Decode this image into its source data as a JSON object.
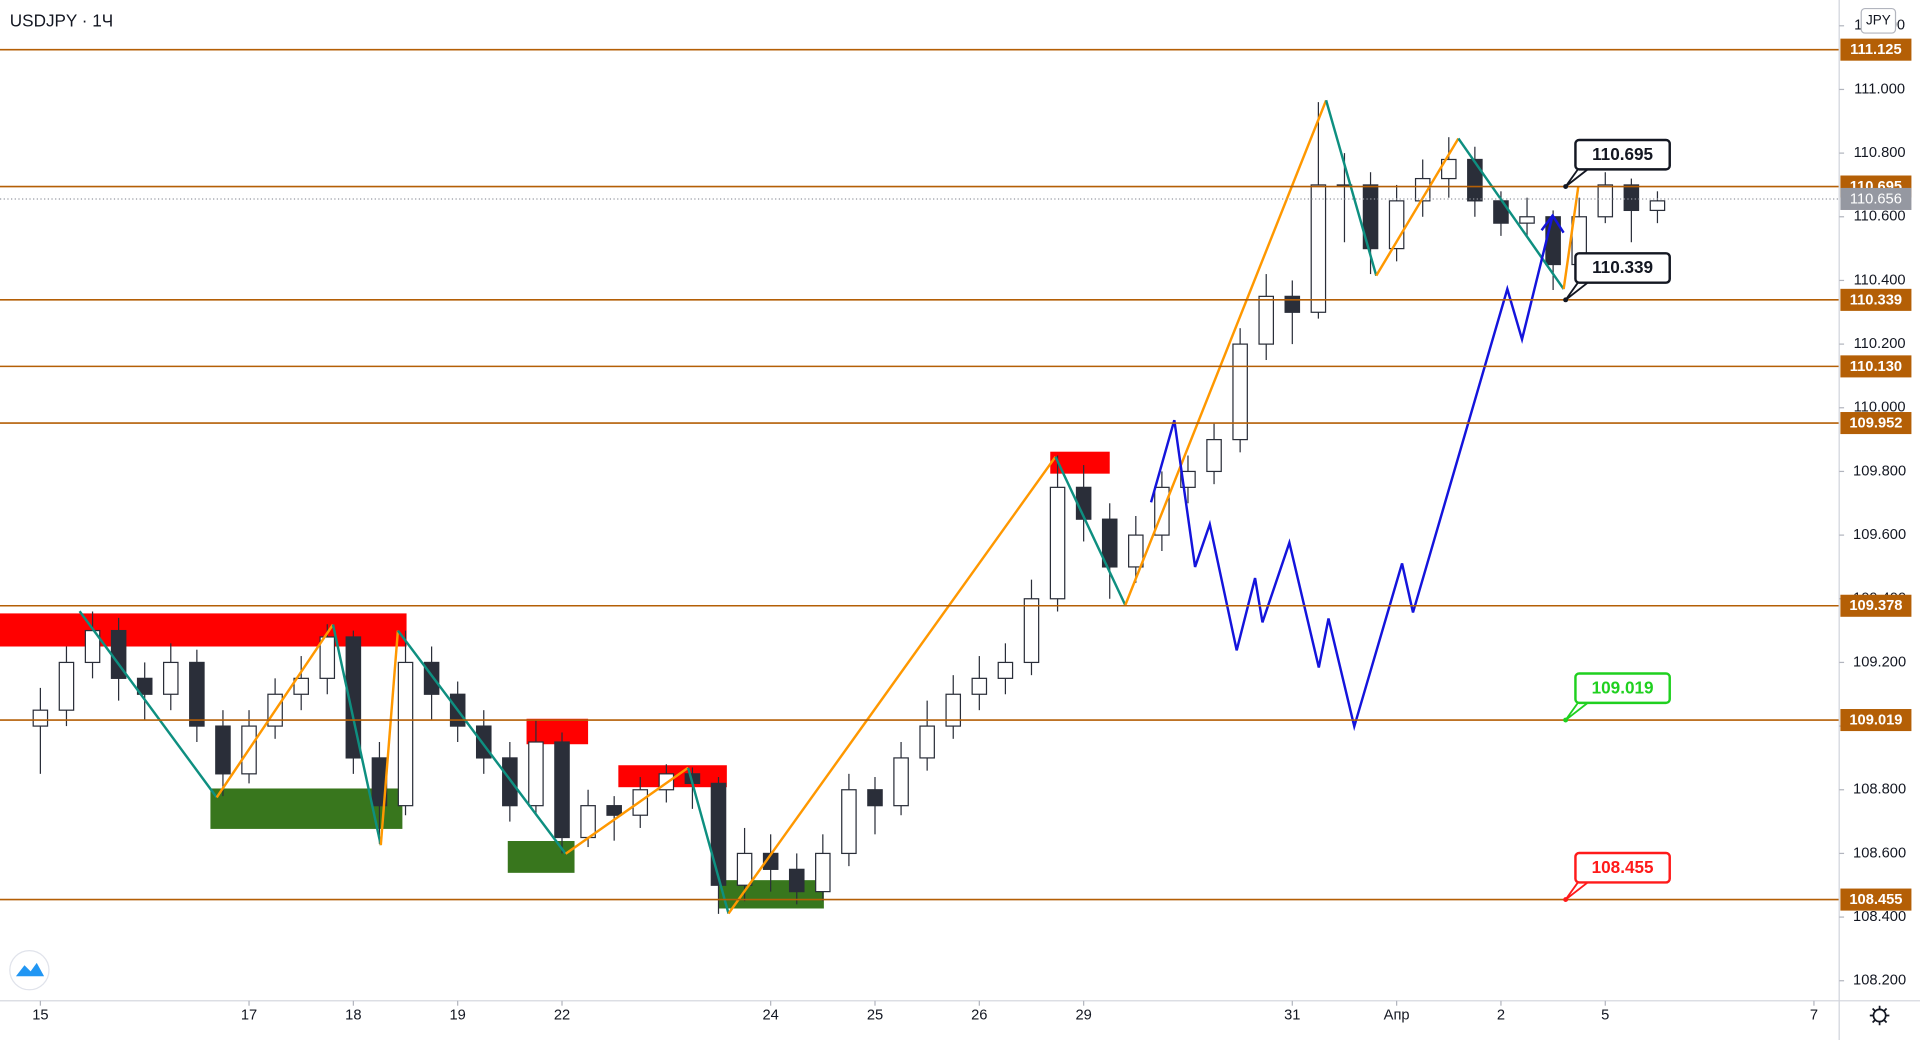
{
  "chart_data": {
    "type": "candlestick",
    "title": "USDJPY · 1Ч",
    "currency": "JPY",
    "xlim": [
      -0.387,
      17.242
    ],
    "xticks": [
      {
        "value": 0,
        "label": "15"
      },
      {
        "value": 2,
        "label": "17"
      },
      {
        "value": 3,
        "label": "18"
      },
      {
        "value": 4,
        "label": "19"
      },
      {
        "value": 5,
        "label": "22"
      },
      {
        "value": 7,
        "label": "24"
      },
      {
        "value": 8,
        "label": "25"
      },
      {
        "value": 9,
        "label": "26"
      },
      {
        "value": 10,
        "label": "29"
      },
      {
        "value": 12,
        "label": "31"
      },
      {
        "value": 13,
        "label": "Апр"
      },
      {
        "value": 14,
        "label": "2"
      },
      {
        "value": 15,
        "label": "5"
      },
      {
        "value": 17,
        "label": "7"
      }
    ],
    "ylim": [
      108.137,
      111.281
    ],
    "yticks": [
      {
        "value": 108.2,
        "label": "108.200"
      },
      {
        "value": 108.4,
        "label": "108.400"
      },
      {
        "value": 108.6,
        "label": "108.600"
      },
      {
        "value": 108.8,
        "label": "108.800"
      },
      {
        "value": 109.0,
        "label": "109.000"
      },
      {
        "value": 109.2,
        "label": "109.200"
      },
      {
        "value": 109.4,
        "label": "109.400"
      },
      {
        "value": 109.6,
        "label": "109.600"
      },
      {
        "value": 109.8,
        "label": "109.800"
      },
      {
        "value": 110.0,
        "label": "110.000"
      },
      {
        "value": 110.2,
        "label": "110.200"
      },
      {
        "value": 110.4,
        "label": "110.400"
      },
      {
        "value": 110.6,
        "label": "110.600"
      },
      {
        "value": 110.8,
        "label": "110.800"
      },
      {
        "value": 111.0,
        "label": "111.000"
      },
      {
        "value": 111.2,
        "label": "111.200"
      }
    ],
    "candles": {
      "up_color": "#ffffff",
      "down_color": "#2a2e39",
      "wick_color": "#2a2e39",
      "x": [
        0,
        0.25,
        0.5,
        0.75,
        1,
        1.25,
        1.5,
        1.75,
        2,
        2.25,
        2.5,
        2.75,
        3,
        3.25,
        3.5,
        3.75,
        4,
        4.25,
        4.5,
        4.75,
        5,
        5.25,
        5.5,
        5.75,
        6,
        6.25,
        6.5,
        6.75,
        7,
        7.25,
        7.5,
        7.75,
        8,
        8.25,
        8.5,
        8.75,
        9,
        9.25,
        9.5,
        9.75,
        10,
        10.25,
        10.5,
        10.75,
        11,
        11.25,
        11.5,
        11.75,
        12,
        12.25,
        12.5,
        12.75,
        13,
        13.25,
        13.5,
        13.75,
        14,
        14.25,
        14.5,
        14.75,
        15,
        15.25,
        15.5
      ],
      "open": [
        109.0,
        109.05,
        109.2,
        109.3,
        109.15,
        109.1,
        109.2,
        109.0,
        108.85,
        109.0,
        109.1,
        109.15,
        109.28,
        108.9,
        108.75,
        109.2,
        109.1,
        109.0,
        108.9,
        108.75,
        108.95,
        108.65,
        108.75,
        108.72,
        108.8,
        108.85,
        108.82,
        108.5,
        108.6,
        108.55,
        108.48,
        108.6,
        108.8,
        108.75,
        108.9,
        109.0,
        109.1,
        109.15,
        109.2,
        109.4,
        109.75,
        109.65,
        109.5,
        109.6,
        109.75,
        109.8,
        109.9,
        110.2,
        110.35,
        110.3,
        110.7,
        110.7,
        110.5,
        110.65,
        110.72,
        110.78,
        110.65,
        110.58,
        110.6,
        110.45,
        110.6,
        110.7,
        110.62
      ],
      "high": [
        109.12,
        109.25,
        109.36,
        109.34,
        109.2,
        109.26,
        109.24,
        109.05,
        109.05,
        109.15,
        109.22,
        109.32,
        109.3,
        108.95,
        109.3,
        109.25,
        109.14,
        109.05,
        108.95,
        109.02,
        108.98,
        108.8,
        108.78,
        108.84,
        108.88,
        108.87,
        108.84,
        108.68,
        108.66,
        108.6,
        108.66,
        108.85,
        108.84,
        108.95,
        109.08,
        109.16,
        109.22,
        109.26,
        109.46,
        109.85,
        109.82,
        109.7,
        109.66,
        109.8,
        109.85,
        109.95,
        110.25,
        110.42,
        110.4,
        110.96,
        110.8,
        110.74,
        110.7,
        110.78,
        110.85,
        110.82,
        110.68,
        110.66,
        110.62,
        110.66,
        110.74,
        110.72,
        110.68
      ],
      "low": [
        108.85,
        109.0,
        109.15,
        109.08,
        109.02,
        109.05,
        108.95,
        108.78,
        108.82,
        108.96,
        109.05,
        109.1,
        108.85,
        108.63,
        108.72,
        109.02,
        108.95,
        108.85,
        108.7,
        108.72,
        108.6,
        108.62,
        108.64,
        108.68,
        108.76,
        108.74,
        108.41,
        108.45,
        108.48,
        108.44,
        108.45,
        108.56,
        108.66,
        108.72,
        108.86,
        108.96,
        109.05,
        109.1,
        109.16,
        109.36,
        109.58,
        109.4,
        109.45,
        109.55,
        109.7,
        109.76,
        109.86,
        110.15,
        110.2,
        110.28,
        110.52,
        110.42,
        110.46,
        110.6,
        110.66,
        110.6,
        110.54,
        110.54,
        110.37,
        110.4,
        110.58,
        110.52,
        110.58
      ],
      "close": [
        109.05,
        109.2,
        109.3,
        109.15,
        109.1,
        109.2,
        109.0,
        108.85,
        109.0,
        109.1,
        109.15,
        109.28,
        108.9,
        108.75,
        109.2,
        109.1,
        109.0,
        108.9,
        108.75,
        108.95,
        108.65,
        108.75,
        108.72,
        108.8,
        108.85,
        108.82,
        108.5,
        108.6,
        108.55,
        108.48,
        108.6,
        108.8,
        108.75,
        108.9,
        109.0,
        109.1,
        109.15,
        109.2,
        109.4,
        109.75,
        109.65,
        109.5,
        109.6,
        109.75,
        109.8,
        109.9,
        110.2,
        110.35,
        110.3,
        110.7,
        110.7,
        110.5,
        110.65,
        110.72,
        110.78,
        110.65,
        110.58,
        110.6,
        110.45,
        110.6,
        110.7,
        110.62,
        110.65
      ]
    },
    "level_color": "#b45f06",
    "levels": [
      111.125,
      110.695,
      110.339,
      {
        "value": 110.13,
        "label": "110.130"
      },
      109.952,
      109.378,
      109.019,
      108.455
    ],
    "current_price": 110.656,
    "current_price_color": "#9598a1",
    "zones": [
      {
        "x": [
          -0.387,
          3.51
        ],
        "y": [
          109.354,
          109.25
        ],
        "color": "#ff0000"
      },
      {
        "x": [
          1.63,
          3.47
        ],
        "y": [
          108.804,
          108.677
        ],
        "color": "#38761d"
      },
      {
        "x": [
          4.66,
          5.25
        ],
        "y": [
          109.023,
          108.943
        ],
        "color": "#ff0000"
      },
      {
        "x": [
          4.48,
          5.12
        ],
        "y": [
          108.639,
          108.539
        ],
        "color": "#38761d"
      },
      {
        "x": [
          5.54,
          6.58
        ],
        "y": [
          108.877,
          108.808
        ],
        "color": "#ff0000"
      },
      {
        "x": [
          6.5,
          7.51
        ],
        "y": [
          108.516,
          108.427
        ],
        "color": "#38761d"
      },
      {
        "x": [
          9.68,
          10.25
        ],
        "y": [
          109.862,
          109.793
        ],
        "color": "#ff0000"
      }
    ],
    "zigzag": {
      "up_color": "#ff9800",
      "down_color": "#0e8f80",
      "x": [
        0.376,
        1.69,
        2.805,
        3.263,
        3.427,
        5.035,
        6.209,
        6.596,
        9.73,
        10.399,
        12.324,
        12.805,
        13.592,
        14.601,
        14.742
      ],
      "values": [
        109.361,
        108.776,
        109.319,
        108.626,
        109.3,
        108.599,
        108.869,
        108.411,
        109.846,
        109.38,
        110.966,
        110.415,
        110.846,
        110.373,
        110.696
      ]
    },
    "path": {
      "color": "#1414dc",
      "x": [
        10.646,
        10.869,
        11.068,
        11.209,
        11.467,
        11.643,
        11.714,
        11.972,
        12.254,
        12.347,
        12.594,
        13.052,
        13.157,
        14.061,
        14.202,
        14.495
      ],
      "values": [
        109.703,
        109.961,
        109.5,
        109.634,
        109.238,
        109.465,
        109.326,
        109.576,
        109.184,
        109.338,
        108.999,
        109.511,
        109.357,
        110.373,
        110.215,
        110.604
      ]
    },
    "callouts": [
      {
        "x": 14.62,
        "value": 110.695,
        "color": "#131722"
      },
      {
        "x": 14.62,
        "value": 110.339,
        "color": "#131722"
      },
      {
        "x": 14.62,
        "value": 109.019,
        "color": "#1fd01f"
      },
      {
        "x": 14.62,
        "value": 108.455,
        "color": "#ff1a1a"
      }
    ]
  }
}
